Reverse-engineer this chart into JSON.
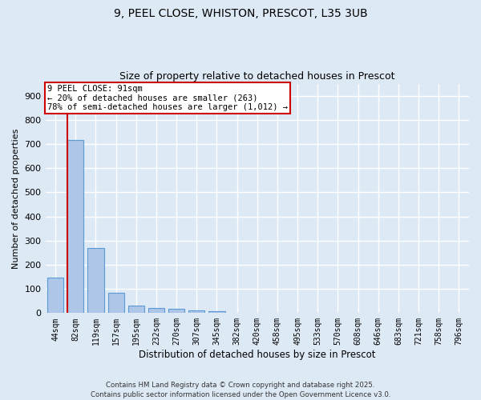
{
  "title_line1": "9, PEEL CLOSE, WHISTON, PRESCOT, L35 3UB",
  "title_line2": "Size of property relative to detached houses in Prescot",
  "xlabel": "Distribution of detached houses by size in Prescot",
  "ylabel": "Number of detached properties",
  "bar_labels": [
    "44sqm",
    "82sqm",
    "119sqm",
    "157sqm",
    "195sqm",
    "232sqm",
    "270sqm",
    "307sqm",
    "345sqm",
    "382sqm",
    "420sqm",
    "458sqm",
    "495sqm",
    "533sqm",
    "570sqm",
    "608sqm",
    "646sqm",
    "683sqm",
    "721sqm",
    "758sqm",
    "796sqm"
  ],
  "bar_values": [
    148,
    715,
    270,
    85,
    32,
    20,
    17,
    10,
    7,
    0,
    0,
    0,
    0,
    0,
    0,
    0,
    0,
    0,
    0,
    0,
    0
  ],
  "bar_color": "#aec6e8",
  "bar_edge_color": "#5b9bd5",
  "vline_color": "#cc0000",
  "vline_x": 0.6,
  "annotation_text": "9 PEEL CLOSE: 91sqm\n← 20% of detached houses are smaller (263)\n78% of semi-detached houses are larger (1,012) →",
  "annotation_box_color": "#ffffff",
  "annotation_box_edge": "#cc0000",
  "ylim": [
    0,
    950
  ],
  "yticks": [
    0,
    100,
    200,
    300,
    400,
    500,
    600,
    700,
    800,
    900
  ],
  "background_color": "#dde9f5",
  "grid_color": "#ffffff",
  "footer_line1": "Contains HM Land Registry data © Crown copyright and database right 2025.",
  "footer_line2": "Contains public sector information licensed under the Open Government Licence v3.0."
}
